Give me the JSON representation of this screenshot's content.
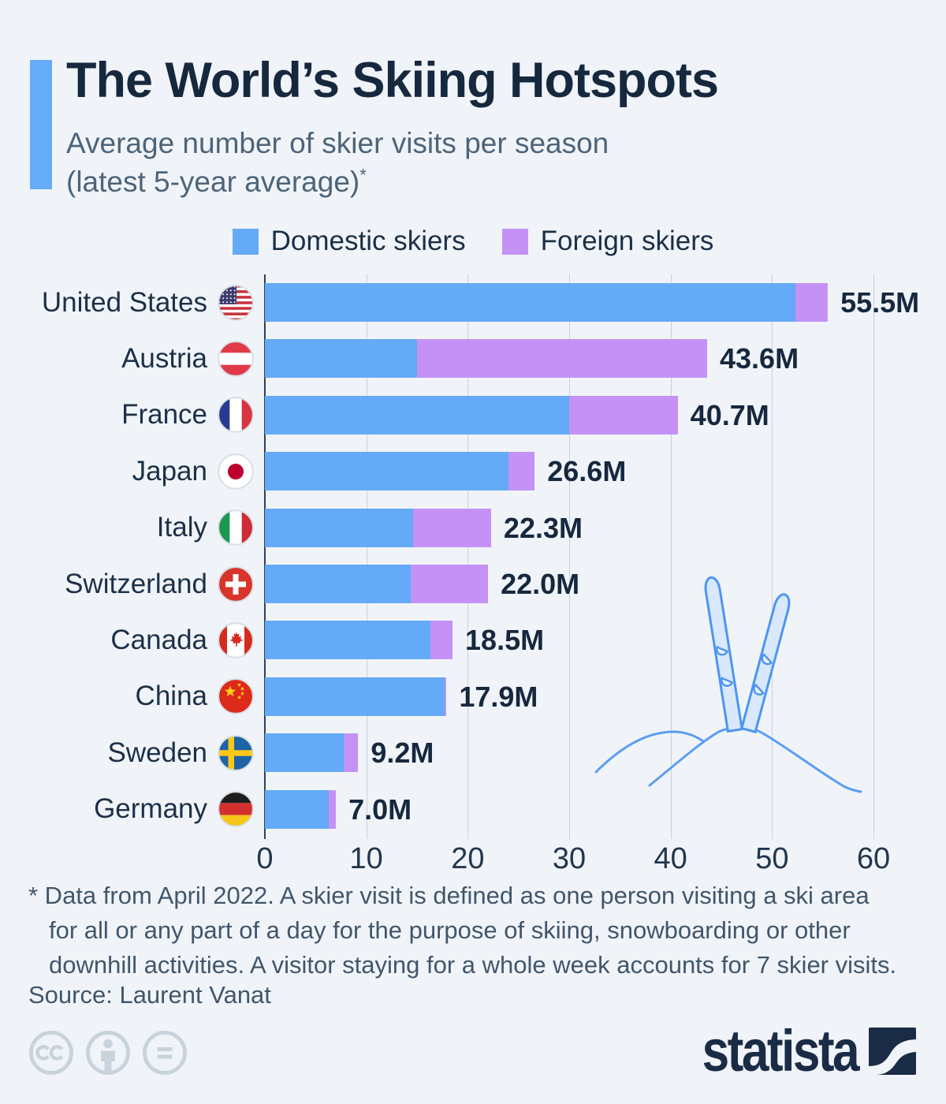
{
  "header": {
    "title": "The World’s Skiing Hotspots",
    "subtitle_line1": "Average number of skier visits per season",
    "subtitle_line2": "(latest 5-year average)",
    "footnote_marker": "*"
  },
  "legend": [
    {
      "label": "Domestic skiers",
      "color": "#64aaf6"
    },
    {
      "label": "Foreign skiers",
      "color": "#c492f4"
    }
  ],
  "chart_data": {
    "type": "bar",
    "orientation": "horizontal",
    "stacked": true,
    "title": "The World’s Skiing Hotspots",
    "subtitle": "Average number of skier visits per season (latest 5-year average)*",
    "unit": "million skier visits per season",
    "categories": [
      "United States",
      "Austria",
      "France",
      "Japan",
      "Italy",
      "Switzerland",
      "Canada",
      "China",
      "Sweden",
      "Germany"
    ],
    "series": [
      {
        "name": "Domestic skiers",
        "color": "#64aaf6",
        "values": [
          52.3,
          15.0,
          30.0,
          24.0,
          14.6,
          14.4,
          16.3,
          17.7,
          7.8,
          6.3
        ]
      },
      {
        "name": "Foreign skiers",
        "color": "#c492f4",
        "values": [
          3.2,
          28.6,
          10.7,
          2.6,
          7.7,
          7.6,
          2.2,
          0.2,
          1.4,
          0.7
        ]
      }
    ],
    "totals": [
      55.5,
      43.6,
      40.7,
      26.6,
      22.3,
      22.0,
      18.5,
      17.9,
      9.2,
      7.0
    ],
    "total_labels": [
      "55.5M",
      "43.6M",
      "40.7M",
      "26.6M",
      "22.3M",
      "22.0M",
      "18.5M",
      "17.9M",
      "9.2M",
      "7.0M"
    ],
    "x_ticks": [
      0,
      10,
      20,
      30,
      40,
      50,
      60
    ],
    "xlim": [
      0,
      60
    ],
    "grid": true,
    "legend_position": "top"
  },
  "rows": [
    {
      "country": "United States",
      "flag": "us",
      "domestic": 52.3,
      "foreign": 3.2,
      "total_label": "55.5M"
    },
    {
      "country": "Austria",
      "flag": "at",
      "domestic": 15.0,
      "foreign": 28.6,
      "total_label": "43.6M"
    },
    {
      "country": "France",
      "flag": "fr",
      "domestic": 30.0,
      "foreign": 10.7,
      "total_label": "40.7M"
    },
    {
      "country": "Japan",
      "flag": "jp",
      "domestic": 24.0,
      "foreign": 2.6,
      "total_label": "26.6M"
    },
    {
      "country": "Italy",
      "flag": "it",
      "domestic": 14.6,
      "foreign": 7.7,
      "total_label": "22.3M"
    },
    {
      "country": "Switzerland",
      "flag": "ch",
      "domestic": 14.4,
      "foreign": 7.6,
      "total_label": "22.0M"
    },
    {
      "country": "Canada",
      "flag": "ca",
      "domestic": 16.3,
      "foreign": 2.2,
      "total_label": "18.5M"
    },
    {
      "country": "China",
      "flag": "cn",
      "domestic": 17.7,
      "foreign": 0.2,
      "total_label": "17.9M"
    },
    {
      "country": "Sweden",
      "flag": "se",
      "domestic": 7.8,
      "foreign": 1.4,
      "total_label": "9.2M"
    },
    {
      "country": "Germany",
      "flag": "de",
      "domestic": 6.3,
      "foreign": 0.7,
      "total_label": "7.0M"
    }
  ],
  "footnote": {
    "line1": "* Data from April 2022. A skier visit is defined as one person visiting a ski area",
    "line2": "for all or any part of a day for the purpose of skiing, snowboarding or other",
    "line3": "downhill activities. A visitor staying for a whole week accounts for 7 skier visits."
  },
  "source": "Source: Laurent Vanat",
  "branding": {
    "logo_text": "statista"
  },
  "footer_icons": [
    "cc-license-icon",
    "attribution-icon",
    "no-derivatives-icon"
  ],
  "colors": {
    "background": "#f0f4f9",
    "accent": "#66abf7",
    "domestic_bar": "#64aaf6",
    "foreign_bar": "#c492f4",
    "title_navy": "#16283e",
    "gridline": "#c9d0d9",
    "axis_line": "#2e4157",
    "illustration_blue": "#5b9df2",
    "footer_gray": "#c9d3dc"
  }
}
